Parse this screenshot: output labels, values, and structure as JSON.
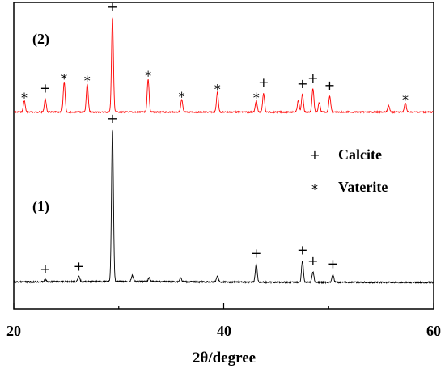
{
  "chart_data": {
    "type": "line",
    "xlabel": "2θ/degree",
    "ylabel": "",
    "xlim": [
      20,
      60
    ],
    "x_ticks": [
      "20",
      "40",
      "60"
    ],
    "y_ticks_labeled": false,
    "grid": false,
    "legend": [
      {
        "symbol": "+",
        "label": "Calcite"
      },
      {
        "symbol": "*",
        "label": "Vaterite"
      }
    ],
    "series": [
      {
        "label": "(2)",
        "color": "#ff0000",
        "peaks_x": [
          21.0,
          23.0,
          24.8,
          27.0,
          29.4,
          32.8,
          36.0,
          39.4,
          43.1,
          43.8,
          47.1,
          47.5,
          48.5,
          49.1,
          50.1,
          55.7,
          57.3
        ],
        "peaks_intensity": [
          0.12,
          0.14,
          0.32,
          0.3,
          1.0,
          0.35,
          0.13,
          0.21,
          0.12,
          0.2,
          0.12,
          0.19,
          0.25,
          0.1,
          0.17,
          0.07,
          0.1
        ],
        "markers": [
          {
            "x": 21.0,
            "symbol": "*"
          },
          {
            "x": 23.0,
            "symbol": "+"
          },
          {
            "x": 24.8,
            "symbol": "*"
          },
          {
            "x": 27.0,
            "symbol": "*"
          },
          {
            "x": 29.4,
            "symbol": "+"
          },
          {
            "x": 32.8,
            "symbol": "*"
          },
          {
            "x": 36.0,
            "symbol": "*"
          },
          {
            "x": 39.4,
            "symbol": "*"
          },
          {
            "x": 43.1,
            "symbol": "*"
          },
          {
            "x": 43.8,
            "symbol": "+"
          },
          {
            "x": 47.5,
            "symbol": "+"
          },
          {
            "x": 48.5,
            "symbol": "+"
          },
          {
            "x": 50.1,
            "symbol": "+"
          },
          {
            "x": 57.3,
            "symbol": "*"
          }
        ]
      },
      {
        "label": "(1)",
        "color": "#000000",
        "peaks_x": [
          23.0,
          26.2,
          29.4,
          31.3,
          32.9,
          35.9,
          39.4,
          43.1,
          47.5,
          48.5,
          50.4
        ],
        "peaks_intensity": [
          0.015,
          0.035,
          1.0,
          0.04,
          0.025,
          0.025,
          0.04,
          0.12,
          0.14,
          0.07,
          0.05
        ],
        "markers": [
          {
            "x": 23.0,
            "symbol": "+"
          },
          {
            "x": 26.2,
            "symbol": "+"
          },
          {
            "x": 29.4,
            "symbol": "+"
          },
          {
            "x": 43.1,
            "symbol": "+"
          },
          {
            "x": 47.5,
            "symbol": "+"
          },
          {
            "x": 48.5,
            "symbol": "+"
          },
          {
            "x": 50.4,
            "symbol": "+"
          }
        ]
      }
    ]
  }
}
